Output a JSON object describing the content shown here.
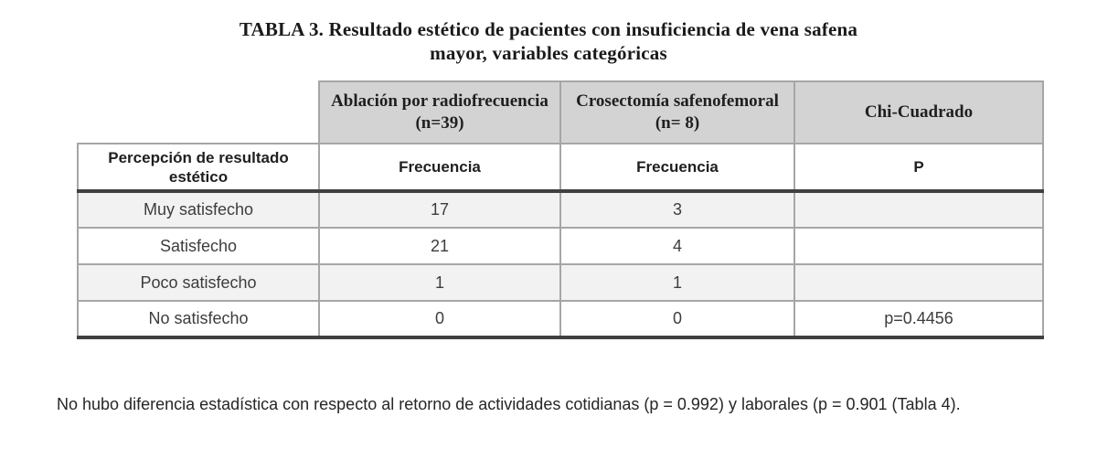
{
  "title": {
    "line1": "TABLA 3. Resultado estético de pacientes con insuficiencia de vena safena",
    "line2": "mayor, variables categóricas"
  },
  "table": {
    "group_headers": [
      "Ablación por radiofrecuencia (n=39)",
      "Crosectomía safenofemoral (n= 8)",
      "Chi-Cuadrado"
    ],
    "sub_headers": {
      "col1": "Percepción de resultado estético",
      "col2": "Frecuencia",
      "col3": "Frecuencia",
      "col4": "P"
    },
    "rows": [
      {
        "label": "Muy satisfecho",
        "rf_freq": "17",
        "cross_freq": "3",
        "p": ""
      },
      {
        "label": "Satisfecho",
        "rf_freq": "21",
        "cross_freq": "4",
        "p": ""
      },
      {
        "label": "Poco satisfecho",
        "rf_freq": "1",
        "cross_freq": "1",
        "p": ""
      },
      {
        "label": "No satisfecho",
        "rf_freq": "0",
        "cross_freq": "0",
        "p": "p=0.4456"
      }
    ]
  },
  "footnote": "No hubo diferencia estadística con respecto al retorno de actividades cotidianas (p = 0.992) y laborales (p = 0.901 (Tabla 4).",
  "colors": {
    "group_header_bg": "#d3d3d3",
    "alt_row_bg": "#f2f2f2",
    "border_light": "#a6a6a6",
    "border_dark": "#404040",
    "text": "#262626"
  }
}
